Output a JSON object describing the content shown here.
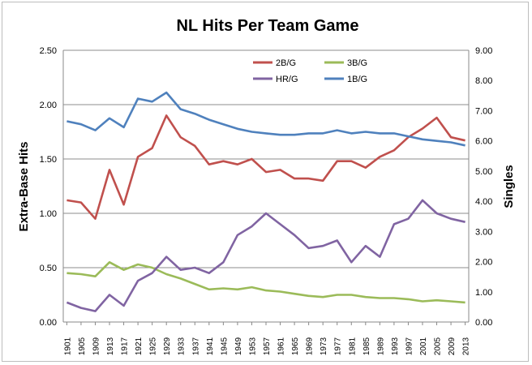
{
  "chart_data": {
    "type": "line",
    "title": "NL Hits Per Team Game",
    "ylabel": "Extra-Base Hits",
    "y2label": "Singles",
    "ylim": [
      0,
      2.5
    ],
    "y2lim": [
      0,
      9
    ],
    "yticks": [
      "0.00",
      "0.50",
      "1.00",
      "1.50",
      "2.00",
      "2.50"
    ],
    "y2ticks": [
      "0.00",
      "1.00",
      "2.00",
      "3.00",
      "4.00",
      "5.00",
      "6.00",
      "7.00",
      "8.00",
      "9.00"
    ],
    "xticks": [
      "1901",
      "1905",
      "1909",
      "1913",
      "1917",
      "1921",
      "1925",
      "1929",
      "1933",
      "1937",
      "1941",
      "1945",
      "1949",
      "1953",
      "1957",
      "1961",
      "1965",
      "1969",
      "1973",
      "1977",
      "1981",
      "1985",
      "1989",
      "1993",
      "1997",
      "2001",
      "2005",
      "2009",
      "2013"
    ],
    "grid": true,
    "legend_position": "top",
    "series": [
      {
        "name": "2B/G",
        "axis": "left",
        "color": "#C0504D",
        "x": [
          1901,
          1905,
          1909,
          1913,
          1917,
          1921,
          1925,
          1929,
          1933,
          1937,
          1941,
          1945,
          1949,
          1953,
          1957,
          1961,
          1965,
          1969,
          1973,
          1977,
          1981,
          1985,
          1989,
          1993,
          1997,
          2001,
          2005,
          2009,
          2013
        ],
        "values": [
          1.12,
          1.1,
          0.95,
          1.4,
          1.08,
          1.52,
          1.6,
          1.9,
          1.7,
          1.62,
          1.45,
          1.48,
          1.45,
          1.5,
          1.38,
          1.4,
          1.32,
          1.32,
          1.3,
          1.48,
          1.48,
          1.42,
          1.52,
          1.58,
          1.7,
          1.78,
          1.88,
          1.7,
          1.67
        ]
      },
      {
        "name": "3B/G",
        "axis": "left",
        "color": "#9BBB59",
        "x": [
          1901,
          1905,
          1909,
          1913,
          1917,
          1921,
          1925,
          1929,
          1933,
          1937,
          1941,
          1945,
          1949,
          1953,
          1957,
          1961,
          1965,
          1969,
          1973,
          1977,
          1981,
          1985,
          1989,
          1993,
          1997,
          2001,
          2005,
          2009,
          2013
        ],
        "values": [
          0.45,
          0.44,
          0.42,
          0.55,
          0.48,
          0.53,
          0.5,
          0.44,
          0.4,
          0.35,
          0.3,
          0.31,
          0.3,
          0.32,
          0.29,
          0.28,
          0.26,
          0.24,
          0.23,
          0.25,
          0.25,
          0.23,
          0.22,
          0.22,
          0.21,
          0.19,
          0.2,
          0.19,
          0.18
        ]
      },
      {
        "name": "HR/G",
        "axis": "left",
        "color": "#8064A2",
        "x": [
          1901,
          1905,
          1909,
          1913,
          1917,
          1921,
          1925,
          1929,
          1933,
          1937,
          1941,
          1945,
          1949,
          1953,
          1957,
          1961,
          1965,
          1969,
          1973,
          1977,
          1981,
          1985,
          1989,
          1993,
          1997,
          2001,
          2005,
          2009,
          2013
        ],
        "values": [
          0.18,
          0.13,
          0.1,
          0.25,
          0.15,
          0.38,
          0.45,
          0.6,
          0.48,
          0.5,
          0.45,
          0.55,
          0.8,
          0.88,
          1.0,
          0.9,
          0.8,
          0.68,
          0.7,
          0.75,
          0.55,
          0.7,
          0.6,
          0.9,
          0.95,
          1.12,
          1.0,
          0.95,
          0.92
        ]
      },
      {
        "name": "1B/G",
        "axis": "right",
        "color": "#4F81BD",
        "x": [
          1901,
          1905,
          1909,
          1913,
          1917,
          1921,
          1925,
          1929,
          1933,
          1937,
          1941,
          1945,
          1949,
          1953,
          1957,
          1961,
          1965,
          1969,
          1973,
          1977,
          1981,
          1985,
          1989,
          1993,
          1997,
          2001,
          2005,
          2009,
          2013
        ],
        "values": [
          6.65,
          6.55,
          6.35,
          6.75,
          6.45,
          7.4,
          7.3,
          7.6,
          7.05,
          6.9,
          6.7,
          6.55,
          6.4,
          6.3,
          6.25,
          6.2,
          6.2,
          6.25,
          6.25,
          6.35,
          6.25,
          6.3,
          6.25,
          6.25,
          6.15,
          6.05,
          6.0,
          5.95,
          5.85
        ]
      }
    ]
  }
}
